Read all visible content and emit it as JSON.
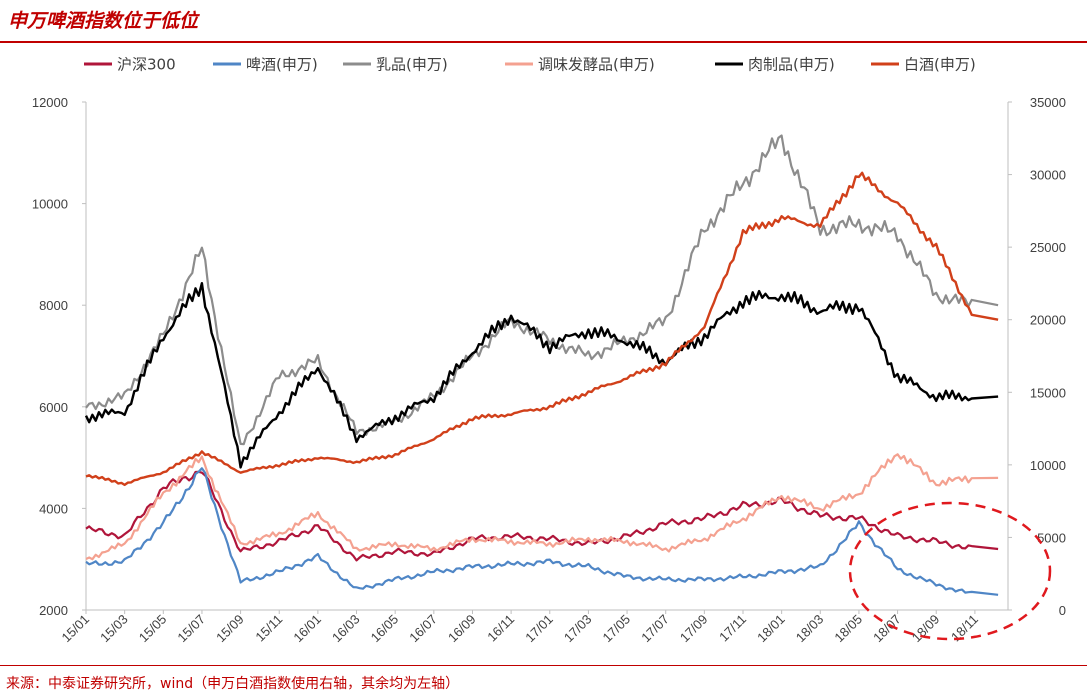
{
  "title": "申万啤酒指数位于低位",
  "source": "来源：中泰证券研究所，wind（申万白酒指数使用右轴，其余均为左轴）",
  "chart_data": {
    "type": "line",
    "x": [
      "15/01",
      "15/03",
      "15/05",
      "15/07",
      "15/09",
      "15/11",
      "16/01",
      "16/03",
      "16/05",
      "16/07",
      "16/09",
      "16/11",
      "17/01",
      "17/03",
      "17/05",
      "17/07",
      "17/09",
      "17/11",
      "18/01",
      "18/03",
      "18/05",
      "18/07",
      "18/09",
      "18/11"
    ],
    "y_left": {
      "ticks": [
        "2000",
        "4000",
        "6000",
        "8000",
        "10000",
        "12000"
      ],
      "range": [
        2000,
        12000
      ]
    },
    "y_right": {
      "ticks": [
        "0",
        "5000",
        "10000",
        "15000",
        "20000",
        "25000",
        "30000",
        "35000"
      ],
      "range": [
        0,
        35000
      ]
    },
    "legend_position": "top",
    "annotation": "red dashed ellipse highlighting the low level of the beer index in 2018",
    "series": [
      {
        "name": "沪深300",
        "axis": "left",
        "color": "#b0153a",
        "width": 2.2,
        "values": [
          3600,
          3450,
          4400,
          4750,
          3150,
          3350,
          3650,
          3000,
          3150,
          3100,
          3400,
          3450,
          3400,
          3300,
          3450,
          3700,
          3800,
          4050,
          4150,
          3850,
          3800,
          3450,
          3350,
          3200
        ]
      },
      {
        "name": "啤酒(申万)",
        "axis": "left",
        "color": "#4f86c6",
        "width": 2.2,
        "values": [
          2900,
          2950,
          3700,
          4800,
          2550,
          2750,
          3050,
          2400,
          2600,
          2750,
          2850,
          2900,
          2950,
          2850,
          2650,
          2600,
          2600,
          2650,
          2750,
          2850,
          3700,
          2800,
          2500,
          2300
        ]
      },
      {
        "name": "乳品(申万)",
        "axis": "left",
        "color": "#8c8c8c",
        "width": 2.2,
        "values": [
          6000,
          6200,
          7400,
          9100,
          5200,
          6600,
          6900,
          5500,
          5700,
          6200,
          7000,
          7700,
          7300,
          7000,
          7300,
          7700,
          9500,
          10400,
          11300,
          9500,
          9600,
          9400,
          8200,
          8000
        ]
      },
      {
        "name": "调味发酵品(申万)",
        "axis": "left",
        "color": "#f4a190",
        "width": 2.2,
        "values": [
          3000,
          3300,
          4300,
          5000,
          3300,
          3500,
          3900,
          3200,
          3300,
          3200,
          3400,
          3350,
          3300,
          3400,
          3350,
          3200,
          3400,
          3800,
          4250,
          4000,
          4300,
          5100,
          4500,
          4600
        ]
      },
      {
        "name": "肉制品(申万)",
        "axis": "left",
        "color": "#000000",
        "width": 2.4,
        "values": [
          5800,
          5900,
          7400,
          8400,
          4900,
          5900,
          6800,
          5400,
          5800,
          6200,
          7100,
          7800,
          7200,
          7500,
          7300,
          6900,
          7400,
          8100,
          8200,
          7900,
          8000,
          6600,
          6200,
          6200
        ]
      },
      {
        "name": "白酒(申万)",
        "axis": "right",
        "color": "#d1401a",
        "width": 2.4,
        "values": [
          9300,
          8700,
          9500,
          10900,
          9500,
          10000,
          10500,
          10200,
          10700,
          11800,
          13200,
          13500,
          14000,
          15000,
          16000,
          17000,
          19500,
          26000,
          27000,
          26500,
          30000,
          28000,
          25000,
          20000
        ]
      }
    ]
  }
}
